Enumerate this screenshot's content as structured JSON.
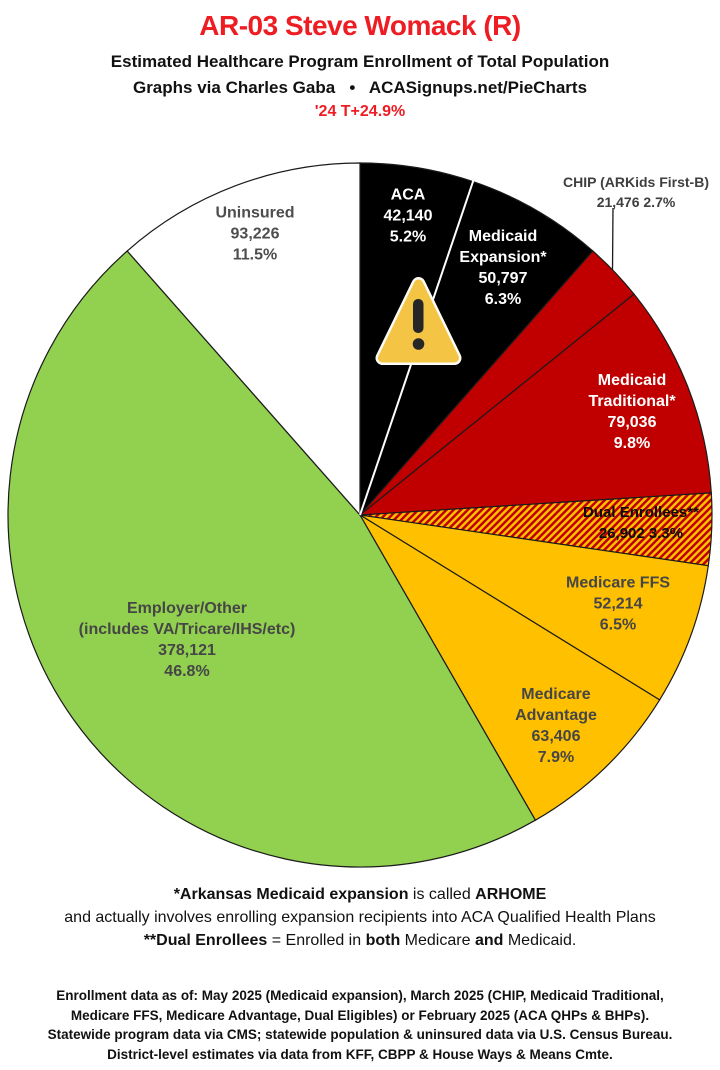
{
  "header": {
    "title": "AR-03 Steve Womack (R)",
    "title_color": "#ee1c23",
    "subtitle1": "Estimated Healthcare Program Enrollment of Total Population",
    "subtitle2": "Graphs via Charles Gaba   •   ACASignups.net/PieCharts",
    "trend_note": "'24 T+24.9%",
    "trend_color": "#ee1c23"
  },
  "chart_data": {
    "type": "pie",
    "title": "Estimated Healthcare Program Enrollment of Total Population",
    "start_angle_deg": 0,
    "direction": "clockwise",
    "legend": "none",
    "warning_icon": "warning-triangle-on-aca-medicaid-expansion-slices",
    "hatch_colors": {
      "base": "#ffc000",
      "stripe": "#c00000"
    },
    "slices": [
      {
        "id": "aca",
        "name": "ACA",
        "value": 42140,
        "pct": 5.2,
        "fill": "#000000",
        "text_color": "#ffffff",
        "lines": [
          "ACA",
          "42,140",
          "5.2%"
        ]
      },
      {
        "id": "medicaid_expansion",
        "name": "Medicaid Expansion*",
        "value": 50797,
        "pct": 6.3,
        "fill": "#000000",
        "text_color": "#ffffff",
        "lines": [
          "Medicaid",
          "Expansion*",
          "50,797",
          "6.3%"
        ]
      },
      {
        "id": "chip",
        "name": "CHIP (ARKids First-B)",
        "value": 21476,
        "pct": 2.7,
        "fill": "#c00000",
        "text_color": "#3f3f3f",
        "label_outside": true,
        "lines": [
          "CHIP (ARKids First-B)",
          "21,476 2.7%"
        ]
      },
      {
        "id": "medicaid_traditional",
        "name": "Medicaid Traditional*",
        "value": 79036,
        "pct": 9.8,
        "fill": "#c00000",
        "text_color": "#ffffff",
        "lines": [
          "Medicaid",
          "Traditional*",
          "79,036",
          "9.8%"
        ]
      },
      {
        "id": "dual_enrollees",
        "name": "Dual Enrollees**",
        "value": 26902,
        "pct": 3.3,
        "fill": "hatch",
        "text_color": "#0d0d0d",
        "lines": [
          "Dual Enrollees**",
          "26,902 3.3%"
        ]
      },
      {
        "id": "medicare_ffs",
        "name": "Medicare FFS",
        "value": 52214,
        "pct": 6.5,
        "fill": "#ffc000",
        "text_color": "#464646",
        "lines": [
          "Medicare FFS",
          "52,214",
          "6.5%"
        ]
      },
      {
        "id": "medicare_advantage",
        "name": "Medicare Advantage",
        "value": 63406,
        "pct": 7.9,
        "fill": "#ffc000",
        "text_color": "#464646",
        "lines": [
          "Medicare",
          "Advantage",
          "63,406",
          "7.9%"
        ]
      },
      {
        "id": "employer_other",
        "name": "Employer/Other (includes VA/Tricare/IHS/etc)",
        "value": 378121,
        "pct": 46.8,
        "fill": "#92d050",
        "text_color": "#464646",
        "lines": [
          "Employer/Other",
          "(includes VA/Tricare/IHS/etc)",
          "378,121",
          "46.8%"
        ]
      },
      {
        "id": "uninsured",
        "name": "Uninsured",
        "value": 93226,
        "pct": 11.5,
        "fill": "#ffffff",
        "text_color": "#4d4d4d",
        "lines": [
          "Uninsured",
          "93,226",
          "11.5%"
        ]
      }
    ]
  },
  "footnotes": {
    "line1": [
      {
        "t": "*Arkansas Medicaid expansion",
        "b": 1
      },
      {
        "t": " is called ",
        "b": 0
      },
      {
        "t": "ARHOME",
        "b": 1
      }
    ],
    "line2": [
      {
        "t": "and actually involves enrolling expansion recipients into ACA Qualified Health Plans",
        "b": 0
      }
    ],
    "line3": [
      {
        "t": "**Dual Enrollees",
        "b": 1
      },
      {
        "t": " = Enrolled in ",
        "b": 0
      },
      {
        "t": "both",
        "b": 1
      },
      {
        "t": " Medicare ",
        "b": 0
      },
      {
        "t": "and",
        "b": 1
      },
      {
        "t": " Medicaid.",
        "b": 0
      }
    ]
  },
  "source": {
    "lines": [
      "Enrollment data as of: May 2025 (Medicaid expansion), March 2025 (CHIP, Medicaid Traditional,",
      "Medicare FFS, Medicare Advantage, Dual Eligibles) or February 2025 (ACA QHPs & BHPs).",
      "Statewide program data via CMS; statewide population & uninsured data via U.S. Census Bureau.",
      "District-level estimates via data from KFF, CBPP & House Ways & Means Cmte."
    ]
  }
}
